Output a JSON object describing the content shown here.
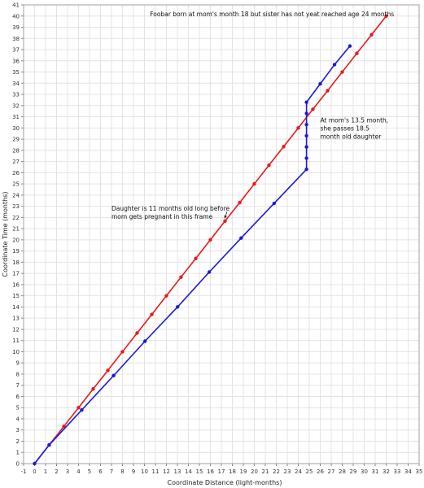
{
  "chart_data": {
    "type": "line",
    "title": "",
    "xlabel": "Coordinate Distance (light-months)",
    "ylabel": "Coordinate Time (months)",
    "xlim": [
      -1,
      35
    ],
    "ylim": [
      0,
      41
    ],
    "xticks": [
      -1,
      0,
      1,
      2,
      3,
      4,
      5,
      6,
      7,
      8,
      9,
      10,
      11,
      12,
      13,
      14,
      15,
      16,
      17,
      18,
      19,
      20,
      21,
      22,
      23,
      24,
      25,
      26,
      27,
      28,
      29,
      30,
      31,
      32,
      33,
      34,
      35
    ],
    "yticks": [
      0,
      1,
      2,
      3,
      4,
      5,
      6,
      7,
      8,
      9,
      10,
      11,
      12,
      13,
      14,
      15,
      16,
      17,
      18,
      19,
      20,
      21,
      22,
      23,
      24,
      25,
      26,
      27,
      28,
      29,
      30,
      31,
      32,
      33,
      34,
      35,
      36,
      37,
      38,
      39,
      40,
      41
    ],
    "grid": true,
    "series": [
      {
        "color": "#e8191b",
        "points": [
          [
            0,
            0
          ],
          [
            1.33,
            1.67
          ],
          [
            2.67,
            3.33
          ],
          [
            4.0,
            5.0
          ],
          [
            5.33,
            6.67
          ],
          [
            6.67,
            8.33
          ],
          [
            8.0,
            10.0
          ],
          [
            9.33,
            11.67
          ],
          [
            10.67,
            13.33
          ],
          [
            12.0,
            15.0
          ],
          [
            13.33,
            16.67
          ],
          [
            14.67,
            18.33
          ],
          [
            16.0,
            20.0
          ],
          [
            17.33,
            21.67
          ],
          [
            18.67,
            23.33
          ],
          [
            20.0,
            25.0
          ],
          [
            21.33,
            26.67
          ],
          [
            22.67,
            28.33
          ],
          [
            24.0,
            30.0
          ],
          [
            25.33,
            31.67
          ],
          [
            26.67,
            33.33
          ],
          [
            28.0,
            35.0
          ],
          [
            29.33,
            36.67
          ],
          [
            30.67,
            38.33
          ],
          [
            32.0,
            40.0
          ]
        ]
      },
      {
        "color": "#1a1ad6",
        "points": [
          [
            0,
            0
          ],
          [
            1.33,
            1.67
          ],
          [
            4.29,
            4.79
          ],
          [
            7.2,
            7.87
          ],
          [
            10.05,
            10.94
          ],
          [
            13.02,
            14.01
          ],
          [
            15.9,
            17.12
          ],
          [
            18.8,
            20.16
          ],
          [
            21.8,
            23.26
          ],
          [
            24.75,
            26.3
          ],
          [
            24.75,
            27.3
          ],
          [
            24.75,
            28.3
          ],
          [
            24.75,
            29.3
          ],
          [
            24.75,
            30.3
          ],
          [
            24.75,
            31.3
          ],
          [
            24.75,
            32.3
          ],
          [
            26.0,
            33.94
          ],
          [
            27.3,
            35.66
          ],
          [
            28.7,
            37.32
          ]
        ]
      }
    ],
    "annotations": [
      {
        "text": "Foobar born at mom's month 18 but sister has not yeat reached age 24 months",
        "x": 10.5,
        "y": 40.0
      },
      {
        "lines": [
          "At mom's 13.5 month,",
          "she passes 18.5",
          "month old daughter"
        ],
        "x": 26.0,
        "y": 30.5
      },
      {
        "lines": [
          "Daughter is 11 months old long before",
          "mom gets pregnant in this frame"
        ],
        "x": 7.0,
        "y": 22.6,
        "arrow_to": [
          17.3,
          21.9
        ]
      }
    ]
  }
}
